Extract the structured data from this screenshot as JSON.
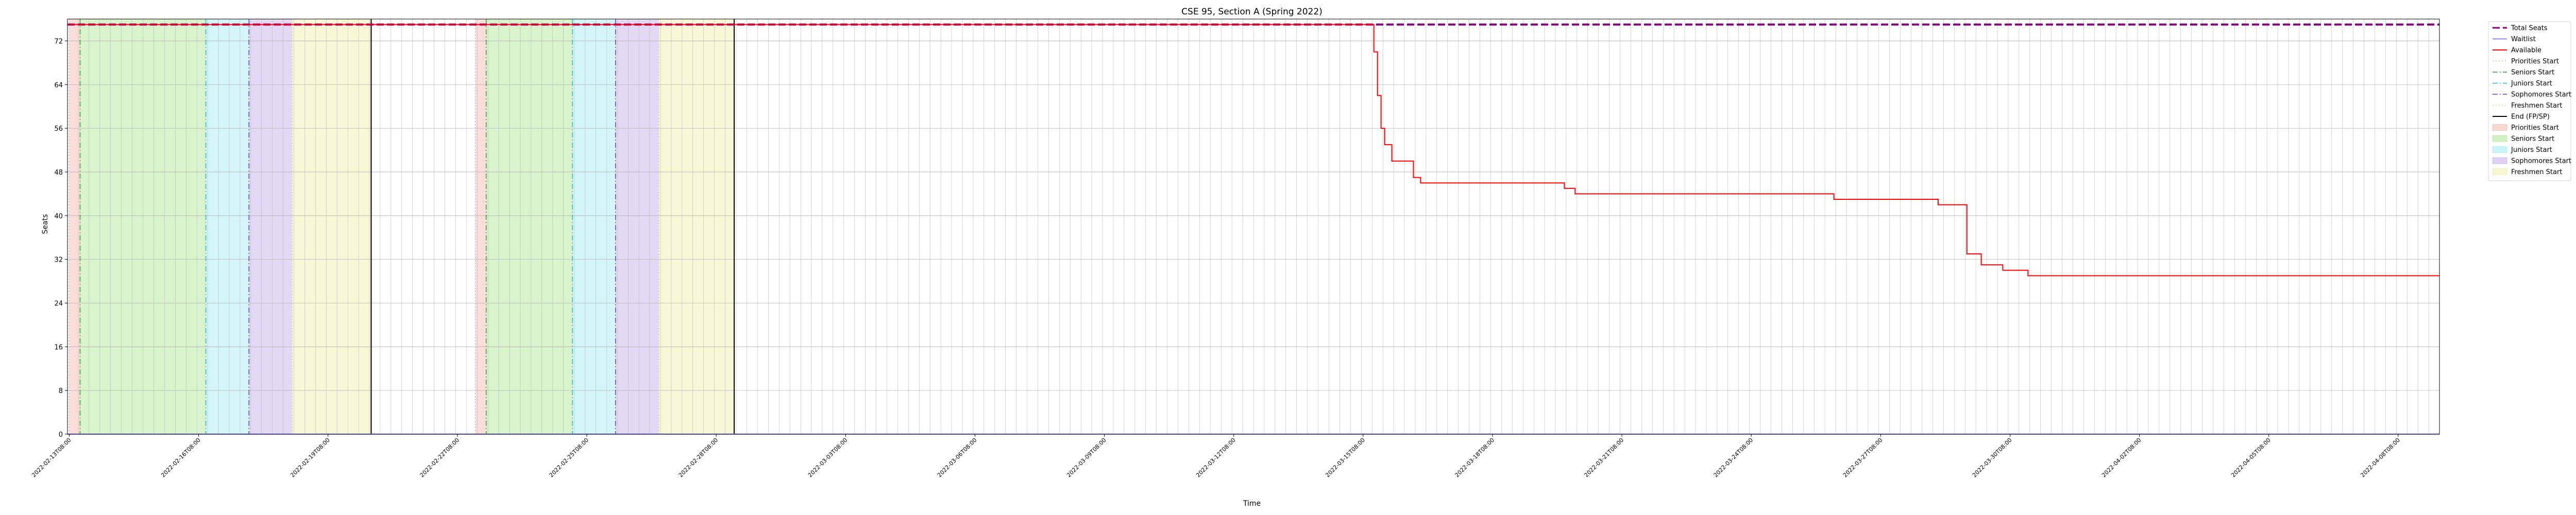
{
  "chart_data": {
    "type": "line",
    "title": "CSE 95, Section A (Spring 2022)",
    "xlabel": "Time",
    "ylabel": "Seats",
    "ylim": [
      0,
      76
    ],
    "yticks": [
      0,
      8,
      16,
      24,
      32,
      40,
      48,
      56,
      64,
      72
    ],
    "grid": true,
    "legend_position": "outside-right",
    "xlim": [
      "2022-02-13T07:00",
      "2022-04-09T07:00"
    ],
    "x_tick_labels": [
      "2022-02-13T08:00",
      "2022-02-16T08:00",
      "2022-02-19T08:00",
      "2022-02-22T08:00",
      "2022-02-25T08:00",
      "2022-02-28T08:00",
      "2022-03-03T08:00",
      "2022-03-06T08:00",
      "2022-03-09T08:00",
      "2022-03-12T08:00",
      "2022-03-15T08:00",
      "2022-03-18T08:00",
      "2022-03-21T08:00",
      "2022-03-24T08:00",
      "2022-03-27T08:00",
      "2022-03-30T08:00",
      "2022-04-02T08:00",
      "2022-04-05T08:00",
      "2022-04-08T08:00"
    ],
    "series": [
      {
        "name": "Total Seats",
        "color": "#800080",
        "style": "dashed",
        "points": [
          [
            "2022-02-13T07:00",
            75
          ],
          [
            "2022-04-09T07:00",
            75
          ]
        ]
      },
      {
        "name": "Waitlist",
        "color": "#8b8bff",
        "style": "solid",
        "points": [
          [
            "2022-02-13T07:00",
            0
          ],
          [
            "2022-04-09T07:00",
            0
          ]
        ]
      },
      {
        "name": "Available",
        "color": "#ff0000",
        "style": "solid",
        "points": [
          [
            "2022-02-13T07:00",
            75
          ],
          [
            "2022-03-15T12:00",
            75
          ],
          [
            "2022-03-15T14:00",
            70
          ],
          [
            "2022-03-15T16:00",
            62
          ],
          [
            "2022-03-15T18:00",
            56
          ],
          [
            "2022-03-15T20:00",
            53
          ],
          [
            "2022-03-16T00:00",
            50
          ],
          [
            "2022-03-16T12:00",
            47
          ],
          [
            "2022-03-16T16:00",
            46
          ],
          [
            "2022-03-19T12:00",
            46
          ],
          [
            "2022-03-20T00:00",
            45
          ],
          [
            "2022-03-20T06:00",
            44
          ],
          [
            "2022-03-26T00:00",
            44
          ],
          [
            "2022-03-26T06:00",
            43
          ],
          [
            "2022-03-28T12:00",
            43
          ],
          [
            "2022-03-28T16:00",
            42
          ],
          [
            "2022-03-29T06:00",
            42
          ],
          [
            "2022-03-29T08:00",
            33
          ],
          [
            "2022-03-29T16:00",
            31
          ],
          [
            "2022-03-30T04:00",
            30
          ],
          [
            "2022-03-30T18:00",
            29
          ],
          [
            "2022-04-09T07:00",
            29
          ]
        ]
      }
    ],
    "event_lines": [
      {
        "name": "Priorities Start",
        "color": "#f4a89a",
        "style": "dotted",
        "x": "2022-02-13T08:00"
      },
      {
        "name": "Seniors Start",
        "color": "#2ca02c",
        "style": "dashdot",
        "x": "2022-02-13T14:00"
      },
      {
        "name": "Juniors Start",
        "color": "#17becf",
        "style": "dashdot",
        "x": "2022-02-16T12:00"
      },
      {
        "name": "Sophomores Start",
        "color": "#6a3fbf",
        "style": "dashdot",
        "x": "2022-02-17T12:00"
      },
      {
        "name": "Freshmen Start",
        "color": "#d4d46a",
        "style": "dotted",
        "x": "2022-02-18T12:00"
      },
      {
        "name": "End (FP/SP)",
        "color": "#000000",
        "style": "solid",
        "x": "2022-02-20T08:00"
      },
      {
        "name": "Priorities Start",
        "color": "#f4a89a",
        "style": "dotted",
        "x": "2022-02-22T18:00"
      },
      {
        "name": "Seniors Start",
        "color": "#2ca02c",
        "style": "dashdot",
        "x": "2022-02-23T00:00"
      },
      {
        "name": "Juniors Start",
        "color": "#17becf",
        "style": "dashdot",
        "x": "2022-02-25T00:00"
      },
      {
        "name": "Sophomores Start",
        "color": "#6a3fbf",
        "style": "dashdot",
        "x": "2022-02-26T00:00"
      },
      {
        "name": "Freshmen Start",
        "color": "#d4d46a",
        "style": "dotted",
        "x": "2022-02-27T00:00"
      },
      {
        "name": "End (FP/SP)",
        "color": "#000000",
        "style": "solid",
        "x": "2022-02-28T18:00"
      }
    ],
    "shaded_regions": [
      {
        "name": "Priorities Start",
        "color": "#f4a89a",
        "start": "2022-02-13T08:00",
        "end": "2022-02-13T14:00"
      },
      {
        "name": "Seniors Start",
        "color": "#9be07a",
        "start": "2022-02-13T14:00",
        "end": "2022-02-16T12:00"
      },
      {
        "name": "Juniors Start",
        "color": "#8ee4ee",
        "start": "2022-02-16T12:00",
        "end": "2022-02-17T12:00"
      },
      {
        "name": "Sophomores Start",
        "color": "#b79be6",
        "start": "2022-02-17T12:00",
        "end": "2022-02-18T12:00"
      },
      {
        "name": "Freshmen Start",
        "color": "#ecec9a",
        "start": "2022-02-18T12:00",
        "end": "2022-02-20T08:00"
      },
      {
        "name": "Priorities Start",
        "color": "#f4a89a",
        "start": "2022-02-22T18:00",
        "end": "2022-02-23T00:00"
      },
      {
        "name": "Seniors Start",
        "color": "#9be07a",
        "start": "2022-02-23T00:00",
        "end": "2022-02-25T00:00"
      },
      {
        "name": "Juniors Start",
        "color": "#8ee4ee",
        "start": "2022-02-25T00:00",
        "end": "2022-02-26T00:00"
      },
      {
        "name": "Sophomores Start",
        "color": "#b79be6",
        "start": "2022-02-26T00:00",
        "end": "2022-02-27T00:00"
      },
      {
        "name": "Freshmen Start",
        "color": "#ecec9a",
        "start": "2022-02-27T00:00",
        "end": "2022-02-28T18:00"
      }
    ],
    "legend": [
      {
        "label": "Total Seats",
        "kind": "line",
        "color": "#800080",
        "style": "dashed",
        "width": 3
      },
      {
        "label": "Waitlist",
        "kind": "line",
        "color": "#8b8bff",
        "style": "solid",
        "width": 2
      },
      {
        "label": "Available",
        "kind": "line",
        "color": "#ff0000",
        "style": "solid",
        "width": 2
      },
      {
        "label": "Priorities Start",
        "kind": "line",
        "color": "#f4a89a",
        "style": "dotted",
        "width": 1.5
      },
      {
        "label": "Seniors Start",
        "kind": "line",
        "color": "#2ca02c",
        "style": "dashdot",
        "width": 1.5
      },
      {
        "label": "Juniors Start",
        "kind": "line",
        "color": "#17becf",
        "style": "dashdot",
        "width": 1.5
      },
      {
        "label": "Sophomores Start",
        "kind": "line",
        "color": "#6a3fbf",
        "style": "dashdot",
        "width": 1.5
      },
      {
        "label": "Freshmen Start",
        "kind": "line",
        "color": "#d4d46a",
        "style": "dotted",
        "width": 1.5
      },
      {
        "label": "End (FP/SP)",
        "kind": "line",
        "color": "#000000",
        "style": "solid",
        "width": 2
      },
      {
        "label": "Priorities Start",
        "kind": "patch",
        "color": "#f4a89a"
      },
      {
        "label": "Seniors Start",
        "kind": "patch",
        "color": "#9be07a"
      },
      {
        "label": "Juniors Start",
        "kind": "patch",
        "color": "#8ee4ee"
      },
      {
        "label": "Sophomores Start",
        "kind": "patch",
        "color": "#b79be6"
      },
      {
        "label": "Freshmen Start",
        "kind": "patch",
        "color": "#ecec9a"
      }
    ]
  }
}
